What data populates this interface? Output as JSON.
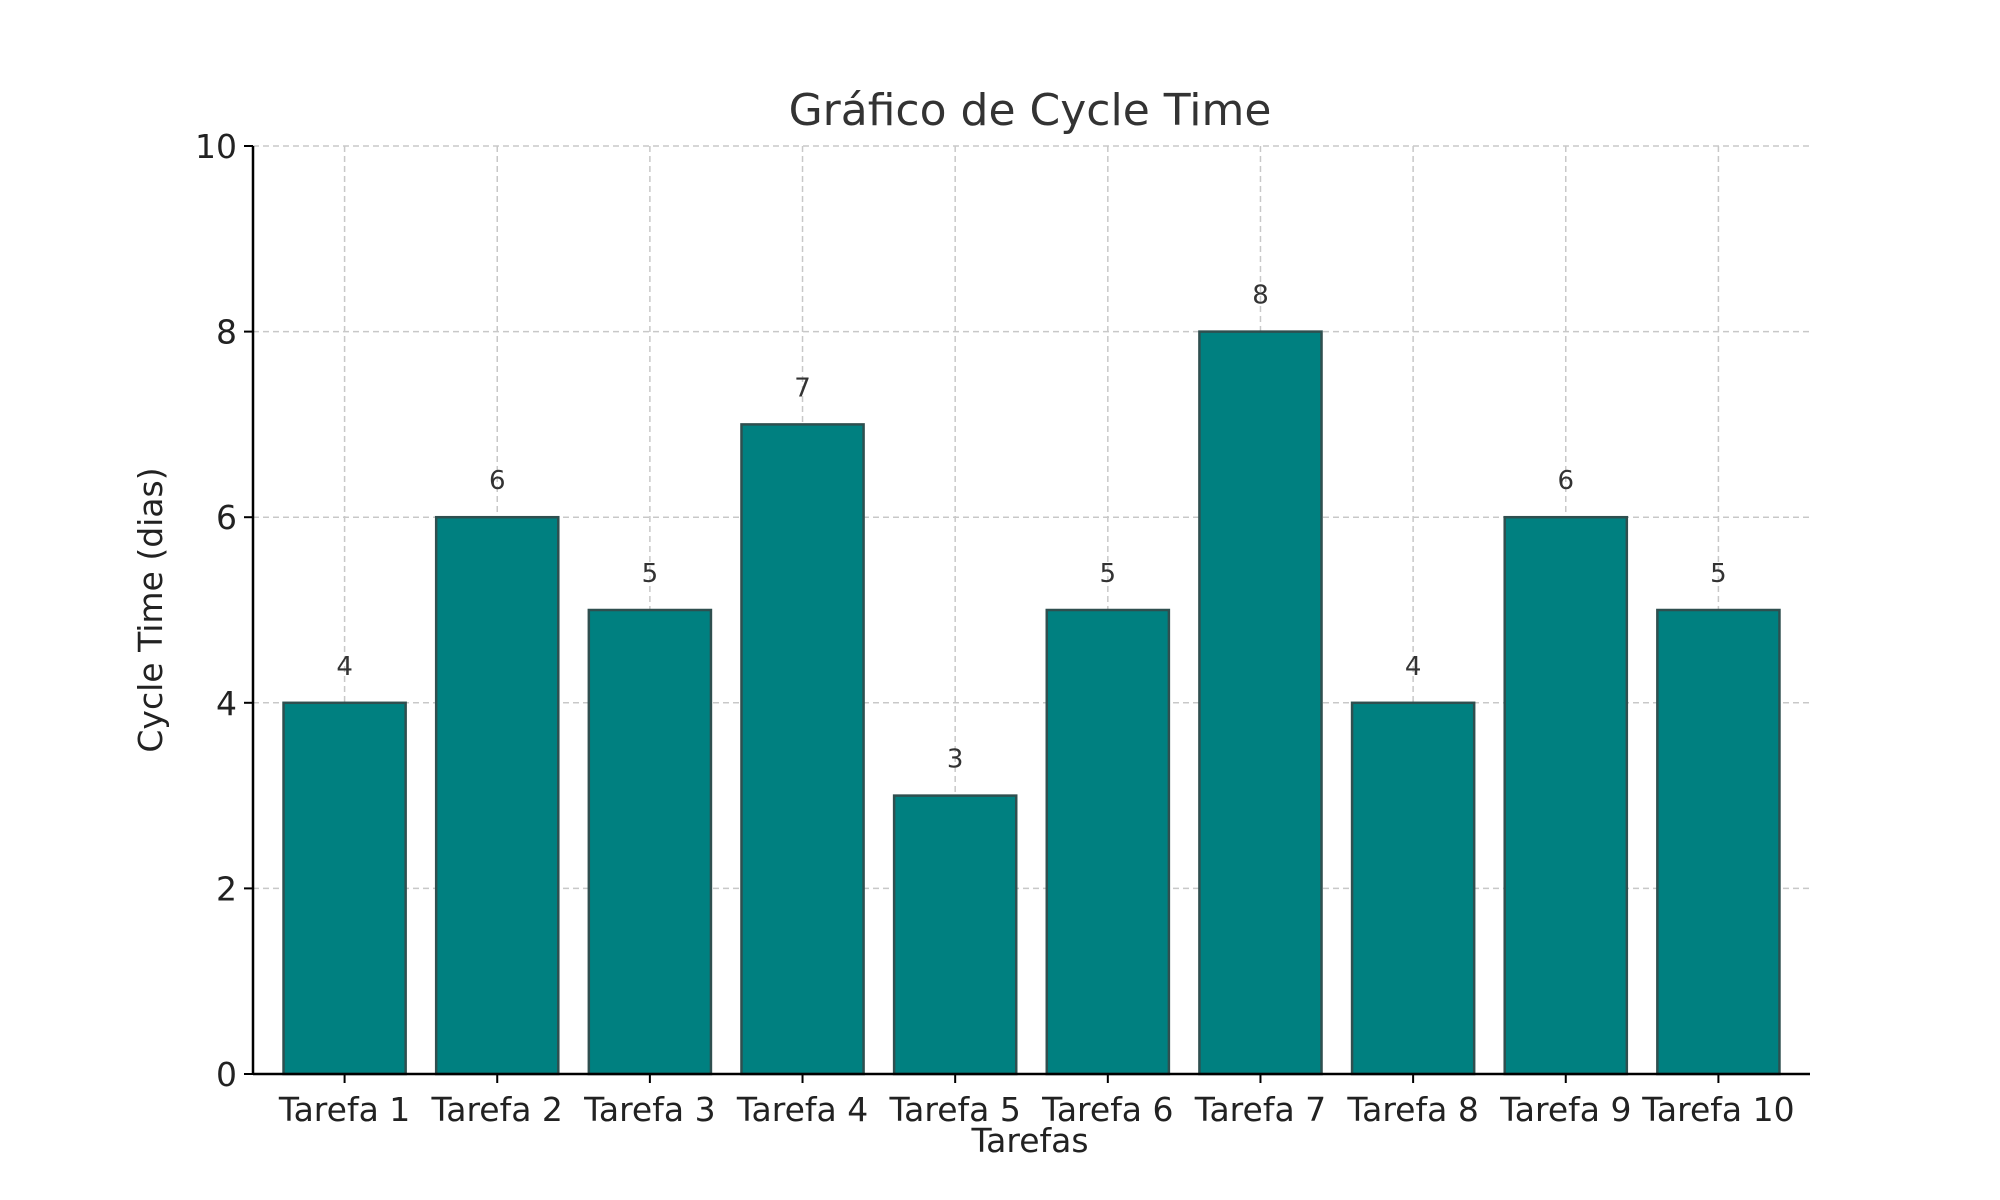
{
  "chart_data": {
    "type": "bar",
    "title": "Gráfico de Cycle Time",
    "xlabel": "Tarefas",
    "ylabel": "Cycle Time (dias)",
    "categories": [
      "Tarefa 1",
      "Tarefa 2",
      "Tarefa 3",
      "Tarefa 4",
      "Tarefa 5",
      "Tarefa 6",
      "Tarefa 7",
      "Tarefa 8",
      "Tarefa 9",
      "Tarefa 10"
    ],
    "values": [
      4,
      6,
      5,
      7,
      3,
      5,
      8,
      4,
      6,
      5
    ],
    "ylim": [
      0,
      10
    ],
    "yticks": [
      0,
      2,
      4,
      6,
      8,
      10
    ],
    "grid": true,
    "show_data_labels": true,
    "colors": {
      "bar": "#008080",
      "bar_edge": "#2f4f4f"
    }
  }
}
